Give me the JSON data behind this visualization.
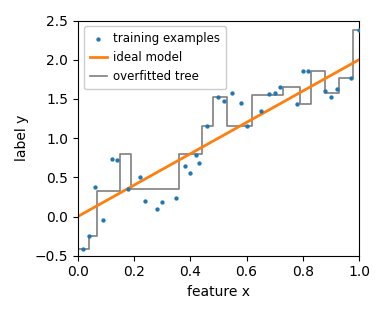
{
  "title": "",
  "xlabel": "feature x",
  "ylabel": "label y",
  "xlim": [
    0.0,
    1.0
  ],
  "ylim": [
    -0.5,
    2.5
  ],
  "ideal_model": {
    "x": [
      0.0,
      1.0
    ],
    "y": [
      0.0,
      2.0
    ]
  },
  "scatter_points": [
    [
      0.02,
      -0.42
    ],
    [
      0.04,
      -0.25
    ],
    [
      0.06,
      0.38
    ],
    [
      0.09,
      -0.05
    ],
    [
      0.12,
      0.73
    ],
    [
      0.14,
      0.72
    ],
    [
      0.18,
      0.35
    ],
    [
      0.22,
      0.5
    ],
    [
      0.24,
      0.2
    ],
    [
      0.28,
      0.1
    ],
    [
      0.3,
      0.19
    ],
    [
      0.35,
      0.24
    ],
    [
      0.38,
      0.65
    ],
    [
      0.4,
      0.55
    ],
    [
      0.42,
      0.78
    ],
    [
      0.43,
      0.68
    ],
    [
      0.46,
      1.15
    ],
    [
      0.5,
      1.53
    ],
    [
      0.52,
      1.47
    ],
    [
      0.55,
      1.57
    ],
    [
      0.58,
      1.45
    ],
    [
      0.6,
      1.16
    ],
    [
      0.65,
      1.35
    ],
    [
      0.68,
      1.56
    ],
    [
      0.7,
      1.57
    ],
    [
      0.72,
      1.65
    ],
    [
      0.78,
      1.43
    ],
    [
      0.8,
      1.85
    ],
    [
      0.82,
      1.85
    ],
    [
      0.88,
      1.6
    ],
    [
      0.9,
      1.53
    ],
    [
      0.92,
      1.62
    ],
    [
      0.97,
      1.77
    ],
    [
      1.0,
      2.38
    ]
  ],
  "overfitted_tree": [
    [
      0.0,
      -0.42
    ],
    [
      0.04,
      -0.42
    ],
    [
      0.04,
      -0.25
    ],
    [
      0.07,
      -0.25
    ],
    [
      0.07,
      0.33
    ],
    [
      0.15,
      0.33
    ],
    [
      0.15,
      0.8
    ],
    [
      0.19,
      0.8
    ],
    [
      0.19,
      0.35
    ],
    [
      0.36,
      0.35
    ],
    [
      0.36,
      0.8
    ],
    [
      0.44,
      0.8
    ],
    [
      0.44,
      1.15
    ],
    [
      0.48,
      1.15
    ],
    [
      0.48,
      1.53
    ],
    [
      0.53,
      1.53
    ],
    [
      0.53,
      1.15
    ],
    [
      0.62,
      1.15
    ],
    [
      0.62,
      1.55
    ],
    [
      0.73,
      1.55
    ],
    [
      0.73,
      1.65
    ],
    [
      0.79,
      1.65
    ],
    [
      0.79,
      1.43
    ],
    [
      0.83,
      1.43
    ],
    [
      0.83,
      1.85
    ],
    [
      0.88,
      1.85
    ],
    [
      0.88,
      1.58
    ],
    [
      0.93,
      1.58
    ],
    [
      0.93,
      1.77
    ],
    [
      0.98,
      1.77
    ],
    [
      0.98,
      2.38
    ],
    [
      1.0,
      2.38
    ]
  ],
  "scatter_color": "#1f77b4",
  "ideal_color": "#ff7f0e",
  "tree_color": "#7f7f7f",
  "scatter_marker": ".",
  "scatter_size": 18,
  "legend_labels": [
    "training examples",
    "ideal model",
    "overfitted tree"
  ],
  "figsize": [
    3.85,
    3.14
  ],
  "dpi": 100
}
